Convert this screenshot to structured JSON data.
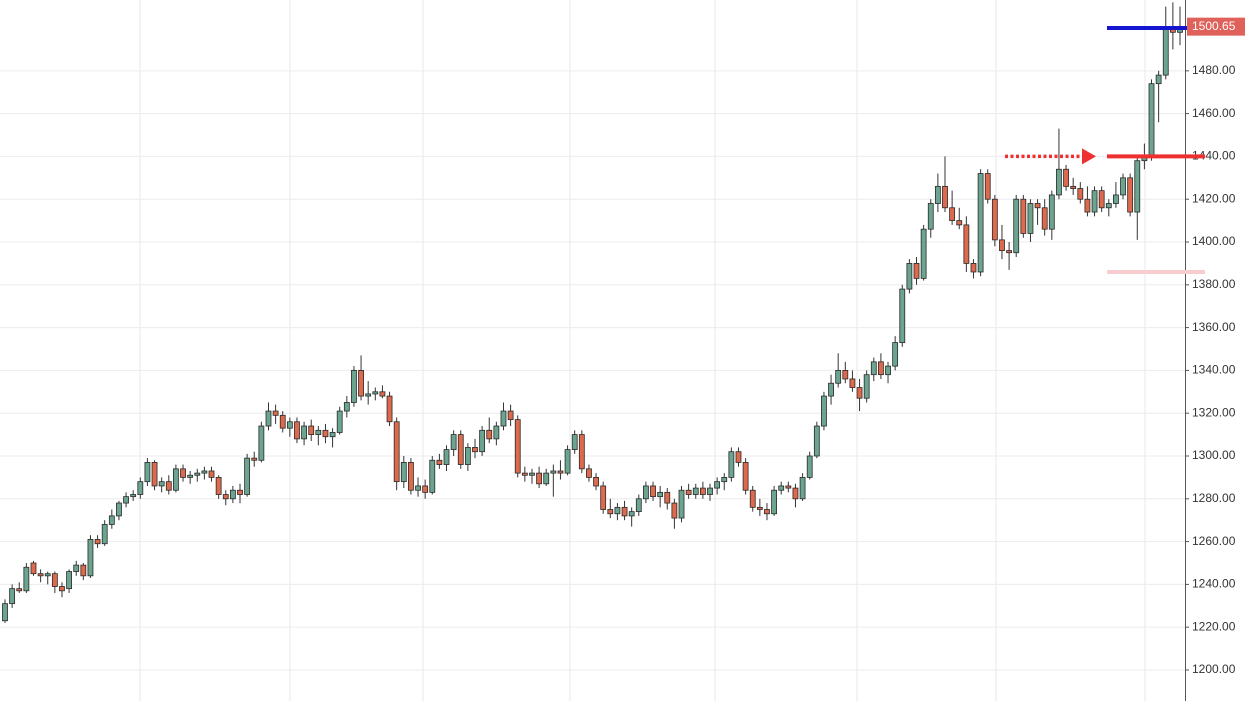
{
  "chart_data": {
    "type": "candlestick",
    "up_color": "#6ba58f",
    "down_color": "#dd6a4d",
    "grid": true,
    "ylim": [
      1185.5,
      1513.1
    ],
    "yticks": [
      {
        "value": 1200,
        "label": "1200.00"
      },
      {
        "value": 1220,
        "label": "1220.00"
      },
      {
        "value": 1240,
        "label": "1240.00"
      },
      {
        "value": 1260,
        "label": "1260.00"
      },
      {
        "value": 1280,
        "label": "1280.00"
      },
      {
        "value": 1300,
        "label": "1300.00"
      },
      {
        "value": 1320,
        "label": "1320.00"
      },
      {
        "value": 1340,
        "label": "1340.00"
      },
      {
        "value": 1360,
        "label": "1360.00"
      },
      {
        "value": 1380,
        "label": "1380.00"
      },
      {
        "value": 1400,
        "label": "1400.00"
      },
      {
        "value": 1420,
        "label": "1420.00"
      },
      {
        "value": 1440,
        "label": "1440.00"
      },
      {
        "value": 1460,
        "label": "1460.00"
      },
      {
        "value": 1480,
        "label": "1480.00"
      }
    ],
    "last_price": 1500.65,
    "last_price_color": "#e0605a",
    "levels": [
      {
        "value": 1500,
        "color": "#1515d0"
      },
      {
        "value": 1440,
        "color": "#ee3030"
      },
      {
        "value": 1386,
        "color": "#f7cdd0"
      }
    ],
    "arrow": {
      "value": 1440,
      "color": "#ee3030"
    },
    "open": [
      1223,
      1231,
      1238,
      1237,
      1250,
      1245,
      1244,
      1245,
      1239,
      1238,
      1246,
      1249,
      1244,
      1261,
      1259,
      1268,
      1272,
      1278,
      1281,
      1282,
      1288,
      1297,
      1286,
      1288,
      1284,
      1294,
      1290,
      1291,
      1292,
      1293,
      1290,
      1282,
      1280,
      1284,
      1282,
      1299,
      1298,
      1314,
      1321,
      1319,
      1313,
      1316,
      1308,
      1314,
      1310,
      1312,
      1309,
      1311,
      1321,
      1325,
      1340,
      1328,
      1329,
      1330,
      1328,
      1316,
      1288,
      1297,
      1284,
      1286,
      1283,
      1298,
      1296,
      1303,
      1310,
      1296,
      1304,
      1302,
      1312,
      1308,
      1314,
      1321,
      1317,
      1292,
      1291,
      1292,
      1287,
      1292,
      1293,
      1292,
      1303,
      1310,
      1294,
      1290,
      1286,
      1275,
      1273,
      1276,
      1272,
      1274,
      1280,
      1286,
      1281,
      1283,
      1278,
      1271,
      1284,
      1282,
      1285,
      1282,
      1285,
      1288,
      1290,
      1302,
      1297,
      1284,
      1276,
      1275,
      1273,
      1284,
      1286,
      1285,
      1280,
      1290,
      1300,
      1314,
      1328,
      1334,
      1340,
      1336,
      1332,
      1327,
      1338,
      1344,
      1338,
      1342,
      1353,
      1378,
      1390,
      1383,
      1406,
      1418,
      1426,
      1416,
      1410,
      1408,
      1390,
      1386,
      1432,
      1420,
      1401,
      1396,
      1395,
      1420,
      1404,
      1418,
      1416,
      1406,
      1422,
      1434,
      1426,
      1425,
      1420,
      1414,
      1424,
      1416,
      1418,
      1422,
      1430,
      1414,
      1438,
      1440,
      1474,
      1478,
      1500,
      1498
    ],
    "high": [
      1233,
      1240,
      1241,
      1250,
      1251,
      1247,
      1246,
      1246,
      1241,
      1247,
      1251,
      1250,
      1263,
      1263,
      1270,
      1275,
      1279,
      1283,
      1284,
      1290,
      1299,
      1298,
      1290,
      1291,
      1296,
      1296,
      1293,
      1294,
      1295,
      1295,
      1291,
      1284,
      1286,
      1287,
      1301,
      1302,
      1316,
      1325,
      1324,
      1321,
      1318,
      1318,
      1316,
      1317,
      1314,
      1315,
      1313,
      1323,
      1328,
      1342,
      1347,
      1335,
      1332,
      1333,
      1330,
      1318,
      1300,
      1299,
      1290,
      1289,
      1300,
      1301,
      1305,
      1312,
      1312,
      1306,
      1308,
      1314,
      1318,
      1316,
      1325,
      1324,
      1319,
      1295,
      1294,
      1295,
      1294,
      1296,
      1298,
      1305,
      1312,
      1312,
      1296,
      1292,
      1288,
      1280,
      1278,
      1279,
      1276,
      1282,
      1288,
      1288,
      1286,
      1285,
      1280,
      1286,
      1287,
      1287,
      1288,
      1287,
      1290,
      1292,
      1304,
      1304,
      1299,
      1286,
      1280,
      1278,
      1286,
      1288,
      1288,
      1287,
      1292,
      1302,
      1316,
      1330,
      1338,
      1348,
      1344,
      1340,
      1336,
      1340,
      1346,
      1348,
      1344,
      1356,
      1380,
      1392,
      1393,
      1408,
      1420,
      1432,
      1440,
      1424,
      1416,
      1412,
      1392,
      1434,
      1434,
      1422,
      1408,
      1400,
      1422,
      1422,
      1420,
      1420,
      1420,
      1424,
      1453,
      1436,
      1430,
      1428,
      1426,
      1426,
      1426,
      1420,
      1428,
      1432,
      1432,
      1440,
      1446,
      1476,
      1480,
      1510,
      1512,
      1510
    ],
    "low": [
      1222,
      1229,
      1236,
      1236,
      1244,
      1241,
      1240,
      1236,
      1234,
      1236,
      1244,
      1242,
      1243,
      1257,
      1258,
      1266,
      1270,
      1276,
      1279,
      1280,
      1286,
      1284,
      1283,
      1282,
      1283,
      1288,
      1287,
      1288,
      1289,
      1288,
      1280,
      1277,
      1278,
      1278,
      1281,
      1295,
      1297,
      1312,
      1315,
      1311,
      1309,
      1306,
      1305,
      1307,
      1305,
      1306,
      1304,
      1310,
      1318,
      1323,
      1326,
      1324,
      1326,
      1327,
      1314,
      1284,
      1285,
      1282,
      1281,
      1280,
      1282,
      1294,
      1293,
      1300,
      1294,
      1293,
      1299,
      1300,
      1306,
      1305,
      1312,
      1314,
      1290,
      1288,
      1287,
      1285,
      1286,
      1281,
      1289,
      1291,
      1301,
      1292,
      1288,
      1284,
      1273,
      1271,
      1270,
      1270,
      1267,
      1272,
      1278,
      1279,
      1276,
      1275,
      1266,
      1269,
      1280,
      1280,
      1280,
      1279,
      1282,
      1284,
      1288,
      1295,
      1282,
      1274,
      1272,
      1270,
      1272,
      1282,
      1283,
      1276,
      1279,
      1289,
      1299,
      1312,
      1324,
      1332,
      1334,
      1330,
      1321,
      1325,
      1335,
      1336,
      1334,
      1340,
      1351,
      1376,
      1380,
      1382,
      1402,
      1414,
      1414,
      1408,
      1406,
      1386,
      1383,
      1384,
      1418,
      1398,
      1392,
      1387,
      1393,
      1402,
      1400,
      1408,
      1403,
      1401,
      1420,
      1424,
      1422,
      1418,
      1412,
      1412,
      1414,
      1412,
      1416,
      1420,
      1412,
      1401,
      1434,
      1438,
      1456,
      1476,
      1490,
      1492
    ],
    "close": [
      1231,
      1238,
      1237,
      1248,
      1245,
      1244,
      1245,
      1239,
      1237,
      1246,
      1249,
      1244,
      1261,
      1259,
      1268,
      1272,
      1278,
      1281,
      1282,
      1288,
      1297,
      1286,
      1288,
      1284,
      1294,
      1290,
      1291,
      1292,
      1293,
      1290,
      1282,
      1280,
      1284,
      1282,
      1299,
      1298,
      1314,
      1321,
      1319,
      1313,
      1316,
      1308,
      1314,
      1310,
      1312,
      1309,
      1311,
      1321,
      1325,
      1340,
      1328,
      1329,
      1330,
      1328,
      1316,
      1288,
      1297,
      1284,
      1286,
      1283,
      1298,
      1296,
      1303,
      1310,
      1296,
      1304,
      1302,
      1312,
      1308,
      1314,
      1321,
      1317,
      1292,
      1291,
      1292,
      1287,
      1292,
      1293,
      1292,
      1303,
      1310,
      1294,
      1290,
      1286,
      1275,
      1273,
      1276,
      1272,
      1274,
      1280,
      1286,
      1281,
      1283,
      1278,
      1271,
      1284,
      1282,
      1285,
      1282,
      1285,
      1288,
      1290,
      1302,
      1297,
      1284,
      1276,
      1275,
      1273,
      1284,
      1286,
      1285,
      1280,
      1290,
      1300,
      1314,
      1328,
      1334,
      1340,
      1336,
      1332,
      1327,
      1338,
      1344,
      1338,
      1342,
      1353,
      1378,
      1390,
      1383,
      1406,
      1418,
      1426,
      1416,
      1410,
      1408,
      1390,
      1386,
      1432,
      1420,
      1401,
      1396,
      1395,
      1420,
      1404,
      1418,
      1416,
      1406,
      1422,
      1434,
      1426,
      1425,
      1420,
      1414,
      1424,
      1416,
      1418,
      1422,
      1430,
      1414,
      1438,
      1440,
      1474,
      1478,
      1500,
      1498,
      1500.65
    ]
  }
}
